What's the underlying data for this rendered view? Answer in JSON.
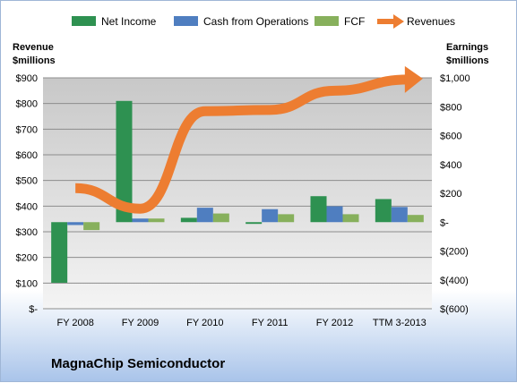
{
  "company": "MagnaChip Semiconductor",
  "chart_data": {
    "type": "bar",
    "categories": [
      "FY 2008",
      "FY 2009",
      "FY 2010",
      "FY 2011",
      "FY 2012",
      "TTM 3-2013"
    ],
    "series": [
      {
        "name": "Net Income",
        "axis": "right",
        "kind": "bar",
        "color": "#2e9151",
        "values": [
          -420,
          840,
          30,
          -12,
          180,
          160
        ]
      },
      {
        "name": "Cash from Operations",
        "axis": "right",
        "kind": "bar",
        "color": "#4f7ec0",
        "values": [
          -20,
          25,
          100,
          90,
          110,
          105
        ]
      },
      {
        "name": "FCF",
        "axis": "right",
        "kind": "bar",
        "color": "#87b05c",
        "values": [
          -55,
          25,
          60,
          55,
          55,
          50
        ]
      },
      {
        "name": "Revenues",
        "axis": "left",
        "kind": "line",
        "color": "#ed7d31",
        "values": [
          470,
          390,
          770,
          775,
          850,
          890
        ]
      }
    ],
    "left_axis": {
      "label_line1": "Revenue",
      "label_line2": "$millions",
      "range": [
        0,
        900
      ],
      "ticks": [
        "$-",
        "$100",
        "$200",
        "$300",
        "$400",
        "$500",
        "$600",
        "$700",
        "$800",
        "$900"
      ]
    },
    "right_axis": {
      "label_line1": "Earnings",
      "label_line2": "$millions",
      "range": [
        -600,
        1000
      ],
      "ticks": [
        "$(600)",
        "$(400)",
        "$(200)",
        "$-",
        "$200",
        "$400",
        "$600",
        "$800",
        "$1,000"
      ]
    },
    "grid": true,
    "legend_position": "top"
  },
  "colors": {
    "plot_bg_top": "#c8c8c8",
    "plot_bg_bottom": "#f4f4f4",
    "gridline": "#8c8c8c"
  }
}
